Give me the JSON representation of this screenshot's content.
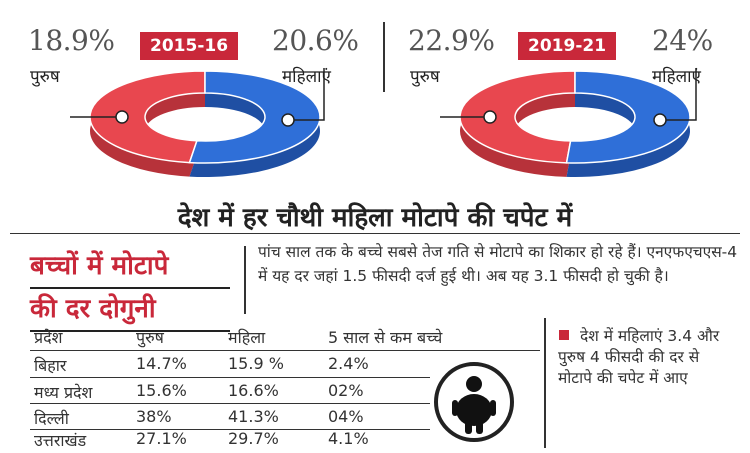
{
  "chart_data": [
    {
      "type": "pie",
      "title": "2015-16",
      "labels": [
        "पुरुष",
        "महिलाएं"
      ],
      "values": [
        18.9,
        20.6
      ],
      "display": [
        "18.9%",
        "20.6%"
      ],
      "colors": [
        "#e8474f",
        "#2f6fd8"
      ]
    },
    {
      "type": "pie",
      "title": "2019-21",
      "labels": [
        "पुरुष",
        "महिलाएं"
      ],
      "values": [
        22.9,
        24
      ],
      "display": [
        "22.9%",
        "24%"
      ],
      "colors": [
        "#e8474f",
        "#2f6fd8"
      ]
    },
    {
      "type": "table",
      "columns": [
        "प्रदेश",
        "पुरुष",
        "महिला",
        "5 साल से कम बच्चे"
      ],
      "rows": [
        [
          "बिहार",
          "14.7%",
          "15.9 %",
          "2.4%"
        ],
        [
          "मध्य प्रदेश",
          "15.6%",
          "16.6%",
          "02%"
        ],
        [
          "दिल्ली",
          "38%",
          "41.3%",
          "04%"
        ],
        [
          "उत्तराखंड",
          "27.1%",
          "29.7%",
          "4.1%"
        ]
      ]
    }
  ],
  "headline": "देश में हर चौथी महिला मोटापे की चपेट में",
  "subhead_line1": "बच्चों में मोटापे",
  "subhead_line2": "की दर दोगुनी",
  "paragraph": "पांच साल तक के बच्चे सबसे तेज गति से मोटापे का शिकार हो रहे हैं। एनएफएचएस-4 में यह दर जहां 1.5 फीसदी दर्ज हुई थी। अब यह 3.1 फीसदी हो चुकी है।",
  "note": "देश में महिलाएं 3.4 और पुरुष 4 फीसदी की दर से मोटापे की चपेट में आए",
  "pct_symbol": "%",
  "icon": "obese-person-icon"
}
